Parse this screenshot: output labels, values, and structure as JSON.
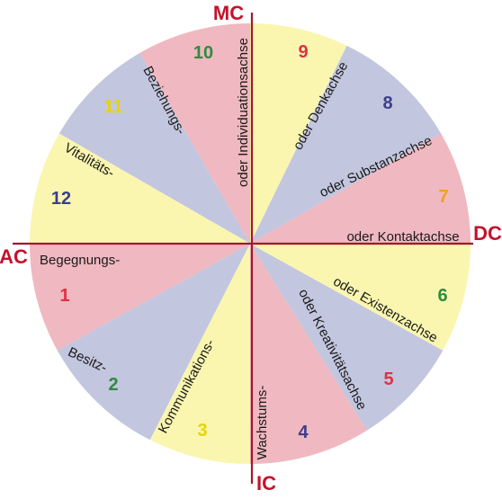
{
  "colors": {
    "pink": "#f0b8c0",
    "yellow": "#faf6b0",
    "blue": "#c3c6df",
    "axis_line": "#a0182e",
    "axis_label": "#c4122d",
    "red_num": "#e03045",
    "green_num": "#2e8b3f",
    "yellow_num": "#e8d400",
    "blue_num": "#3a3f8a",
    "orange_num": "#f0a020",
    "text": "#1a1a1a"
  },
  "axes": {
    "mc": "MC",
    "ic": "IC",
    "ac": "AC",
    "dc": "DC"
  },
  "houses": [
    {
      "number": "1",
      "label": "Begegnungs-",
      "fill": "pink",
      "num_color": "red_num"
    },
    {
      "number": "2",
      "label": "Besitz-",
      "fill": "blue",
      "num_color": "green_num"
    },
    {
      "number": "3",
      "label": "Kommunikations-",
      "fill": "yellow",
      "num_color": "yellow_num"
    },
    {
      "number": "4",
      "label": "Wachstums-",
      "fill": "pink",
      "num_color": "blue_num"
    },
    {
      "number": "5",
      "label": "oder Kreativitätsachse",
      "fill": "blue",
      "num_color": "red_num"
    },
    {
      "number": "6",
      "label": "oder Existenzachse",
      "fill": "yellow",
      "num_color": "green_num"
    },
    {
      "number": "7",
      "label": "oder Kontaktachse",
      "fill": "pink",
      "num_color": "orange_num"
    },
    {
      "number": "8",
      "label": "oder Substanzachse",
      "fill": "blue",
      "num_color": "blue_num"
    },
    {
      "number": "9",
      "label": "oder Denkachse",
      "fill": "yellow",
      "num_color": "red_num"
    },
    {
      "number": "10",
      "label": "oder Individuationsachse",
      "fill": "pink",
      "num_color": "green_num"
    },
    {
      "number": "11",
      "label": "Beziehungs-",
      "fill": "blue",
      "num_color": "yellow_num"
    },
    {
      "number": "12",
      "label": "Vitalitäts-",
      "fill": "yellow",
      "num_color": "blue_num"
    }
  ]
}
